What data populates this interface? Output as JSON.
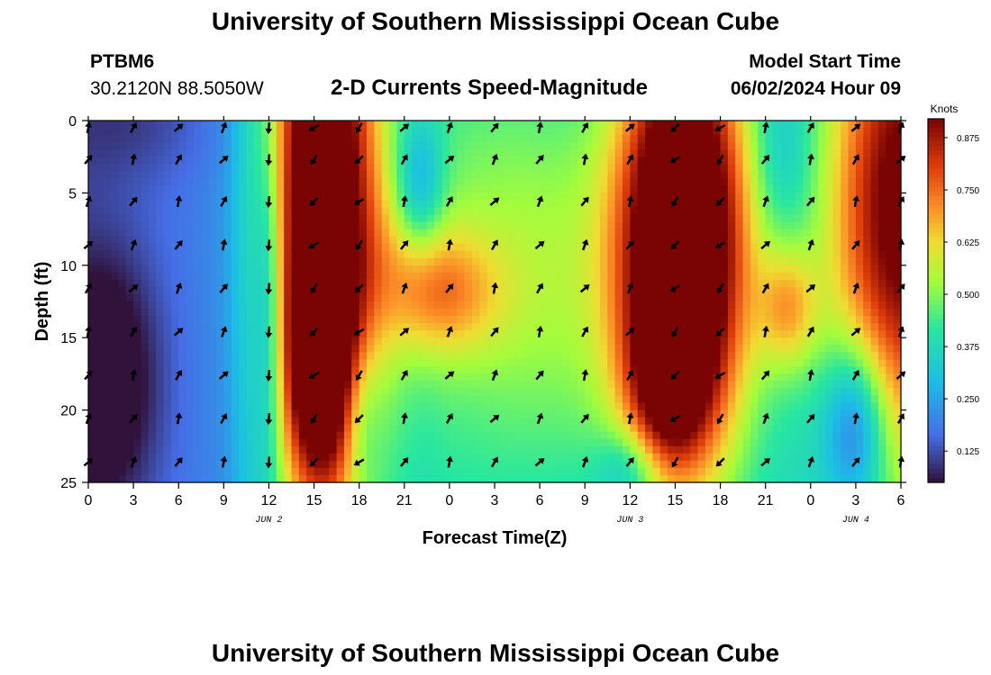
{
  "header": {
    "title": "University of Southern Mississippi Ocean Cube",
    "station": "PTBM6",
    "coords": "30.2120N  88.5050W",
    "subtitle": "2-D Currents Speed-Magnitude",
    "model_label": "Model Start Time",
    "model_time": "06/02/2024 Hour 09"
  },
  "footer": {
    "title": "University of Southern Mississippi Ocean Cube"
  },
  "colorbar": {
    "unit": "Knots",
    "ticks": [
      "0.875",
      "0.750",
      "0.625",
      "0.500",
      "0.375",
      "0.250",
      "0.125"
    ],
    "tick_values": [
      0.875,
      0.75,
      0.625,
      0.5,
      0.375,
      0.25,
      0.125
    ],
    "min": 0.05,
    "max": 0.92
  },
  "colors": {
    "axis": "#000000",
    "arrow": "#000000",
    "background": "#ffffff"
  },
  "chart_data": {
    "type": "heatmap",
    "title": "2-D Currents Speed-Magnitude",
    "xlabel": "Forecast Time(Z)",
    "ylabel": "Depth (ft)",
    "x_range": [
      0,
      54
    ],
    "y_range": [
      0,
      25
    ],
    "x_ticks": [
      0,
      3,
      6,
      9,
      12,
      15,
      18,
      21,
      24,
      27,
      30,
      33,
      36,
      39,
      42,
      45,
      48,
      51,
      54
    ],
    "x_tick_labels": [
      "0",
      "3",
      "6",
      "9",
      "12",
      "15",
      "18",
      "21",
      "0",
      "3",
      "6",
      "9",
      "12",
      "15",
      "18",
      "21",
      "0",
      "3",
      "6"
    ],
    "y_ticks": [
      0,
      5,
      10,
      15,
      20,
      25
    ],
    "y_tick_labels": [
      "0",
      "5",
      "10",
      "15",
      "20",
      "25"
    ],
    "date_labels": [
      {
        "text": "JUN 2",
        "hour": 12
      },
      {
        "text": "JUN 3",
        "hour": 36
      },
      {
        "text": "JUN 4",
        "hour": 51
      }
    ],
    "arrow_depths": [
      0.5,
      2.7,
      5.6,
      8.6,
      11.6,
      14.6,
      17.6,
      20.6,
      23.6
    ],
    "arrow_hours": [
      0,
      3,
      6,
      9,
      12,
      15,
      18,
      21,
      24,
      27,
      30,
      33,
      36,
      39,
      42,
      45,
      48,
      51,
      54
    ],
    "speed_features": [
      {
        "hour": 15.5,
        "depth": 6,
        "sh": 2.6,
        "sd": 16,
        "amp": 0.85
      },
      {
        "hour": 15.5,
        "depth": 17,
        "sh": 1.6,
        "sd": 5,
        "amp": 0.35
      },
      {
        "hour": 39.5,
        "depth": 8,
        "sh": 3.0,
        "sd": 11,
        "amp": 0.9
      },
      {
        "hour": 38.5,
        "depth": 18,
        "sh": 1.8,
        "sd": 4,
        "amp": 0.3
      },
      {
        "hour": 46.5,
        "depth": 13,
        "sh": 1.4,
        "sd": 3,
        "amp": 0.25
      },
      {
        "hour": 54,
        "depth": 6,
        "sh": 3.5,
        "sd": 12,
        "amp": 0.6
      },
      {
        "hour": 24,
        "depth": 12,
        "sh": 2.5,
        "sd": 3,
        "amp": 0.2
      },
      {
        "hour": 21.5,
        "depth": 10,
        "sh": 2.0,
        "sd": 4,
        "amp": 0.15
      },
      {
        "hour": 29,
        "depth": 8,
        "sh": 6.0,
        "sd": 10,
        "amp": 0.15
      },
      {
        "hour": 33,
        "depth": 16,
        "sh": 7.0,
        "sd": 10,
        "amp": 0.08
      },
      {
        "hour": 3,
        "depth": 0,
        "sh": 4,
        "sd": 3,
        "amp": -0.06
      },
      {
        "hour": 1,
        "depth": 18,
        "sh": 2.5,
        "sd": 6,
        "amp": -0.2
      },
      {
        "hour": 12,
        "depth": 12,
        "sh": 0.8,
        "sd": 9,
        "amp": -0.22
      },
      {
        "hour": 22,
        "depth": 5,
        "sh": 1.2,
        "sd": 3.5,
        "amp": -0.22
      },
      {
        "hour": 18,
        "depth": 20,
        "sh": 1.0,
        "sd": 4,
        "amp": -0.18
      },
      {
        "hour": 51,
        "depth": 21,
        "sh": 1.5,
        "sd": 4,
        "amp": -0.3
      },
      {
        "hour": 46,
        "depth": 2,
        "sh": 1.5,
        "sd": 4,
        "amp": -0.1
      },
      {
        "hour": 36,
        "depth": 24,
        "sh": 1.5,
        "sd": 2,
        "amp": -0.15
      }
    ],
    "speed_base_by_hour": [
      {
        "hour": 0,
        "v": 0.14
      },
      {
        "hour": 9,
        "v": 0.2
      },
      {
        "hour": 11,
        "v": 0.28
      },
      {
        "hour": 18,
        "v": 0.32
      },
      {
        "hour": 24,
        "v": 0.36
      },
      {
        "hour": 30,
        "v": 0.33
      },
      {
        "hour": 36,
        "v": 0.3
      },
      {
        "hour": 42,
        "v": 0.33
      },
      {
        "hour": 48,
        "v": 0.34
      },
      {
        "hour": 54,
        "v": 0.38
      }
    ]
  }
}
